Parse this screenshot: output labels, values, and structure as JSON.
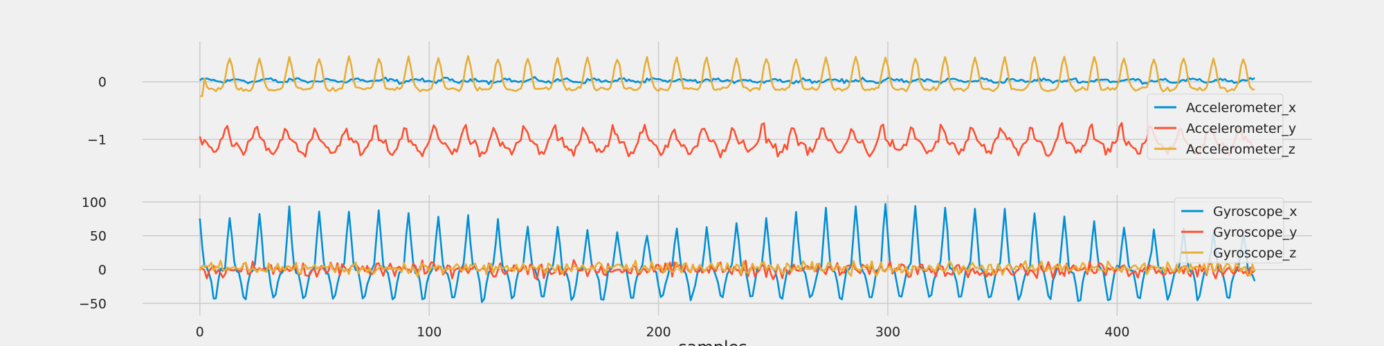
{
  "chart_data": [
    {
      "type": "line",
      "panel": "top",
      "x": [
        0,
        460
      ],
      "xlim": [
        -25,
        485
      ],
      "ylim": [
        -1.5,
        0.7
      ],
      "y_ticks": [
        0,
        -1
      ],
      "y_tick_labels": [
        "0",
        "−1"
      ],
      "x_ticks": [
        0,
        100,
        200,
        300,
        400
      ],
      "grid": true,
      "legend": "right",
      "series": [
        {
          "name": "Accelerometer_x",
          "color": "#008fd5",
          "baseline": 0.02,
          "amplitude": 0.05,
          "noise": 0.035
        },
        {
          "name": "Accelerometer_y",
          "color": "#fc4f30",
          "baseline": -1.05,
          "amplitude": 0.28,
          "noise": 0.09
        },
        {
          "name": "Accelerometer_z",
          "color": "#e5ae38",
          "baseline": -0.05,
          "amplitude": 0.55,
          "noise": 0.04
        }
      ]
    },
    {
      "type": "line",
      "panel": "bottom",
      "x": [
        0,
        460
      ],
      "xlim": [
        -25,
        485
      ],
      "ylim": [
        -68,
        110
      ],
      "y_ticks": [
        100,
        50,
        0,
        -50
      ],
      "y_tick_labels": [
        "100",
        "50",
        "0",
        "−50"
      ],
      "x_ticks": [
        0,
        100,
        200,
        300,
        400
      ],
      "x_tick_labels": [
        "0",
        "100",
        "200",
        "300",
        "400"
      ],
      "xlabel": "samples",
      "grid": true,
      "legend": "top-right",
      "series": [
        {
          "name": "Gyroscope_x",
          "color": "#008fd5",
          "baseline": 0,
          "amplitude": 70,
          "noise": 6
        },
        {
          "name": "Gyroscope_y",
          "color": "#fc4f30",
          "baseline": 0,
          "amplitude": 4,
          "noise": 5
        },
        {
          "name": "Gyroscope_z",
          "color": "#e5ae38",
          "baseline": 2,
          "amplitude": 3,
          "noise": 4
        }
      ]
    }
  ],
  "period_samples": 13
}
